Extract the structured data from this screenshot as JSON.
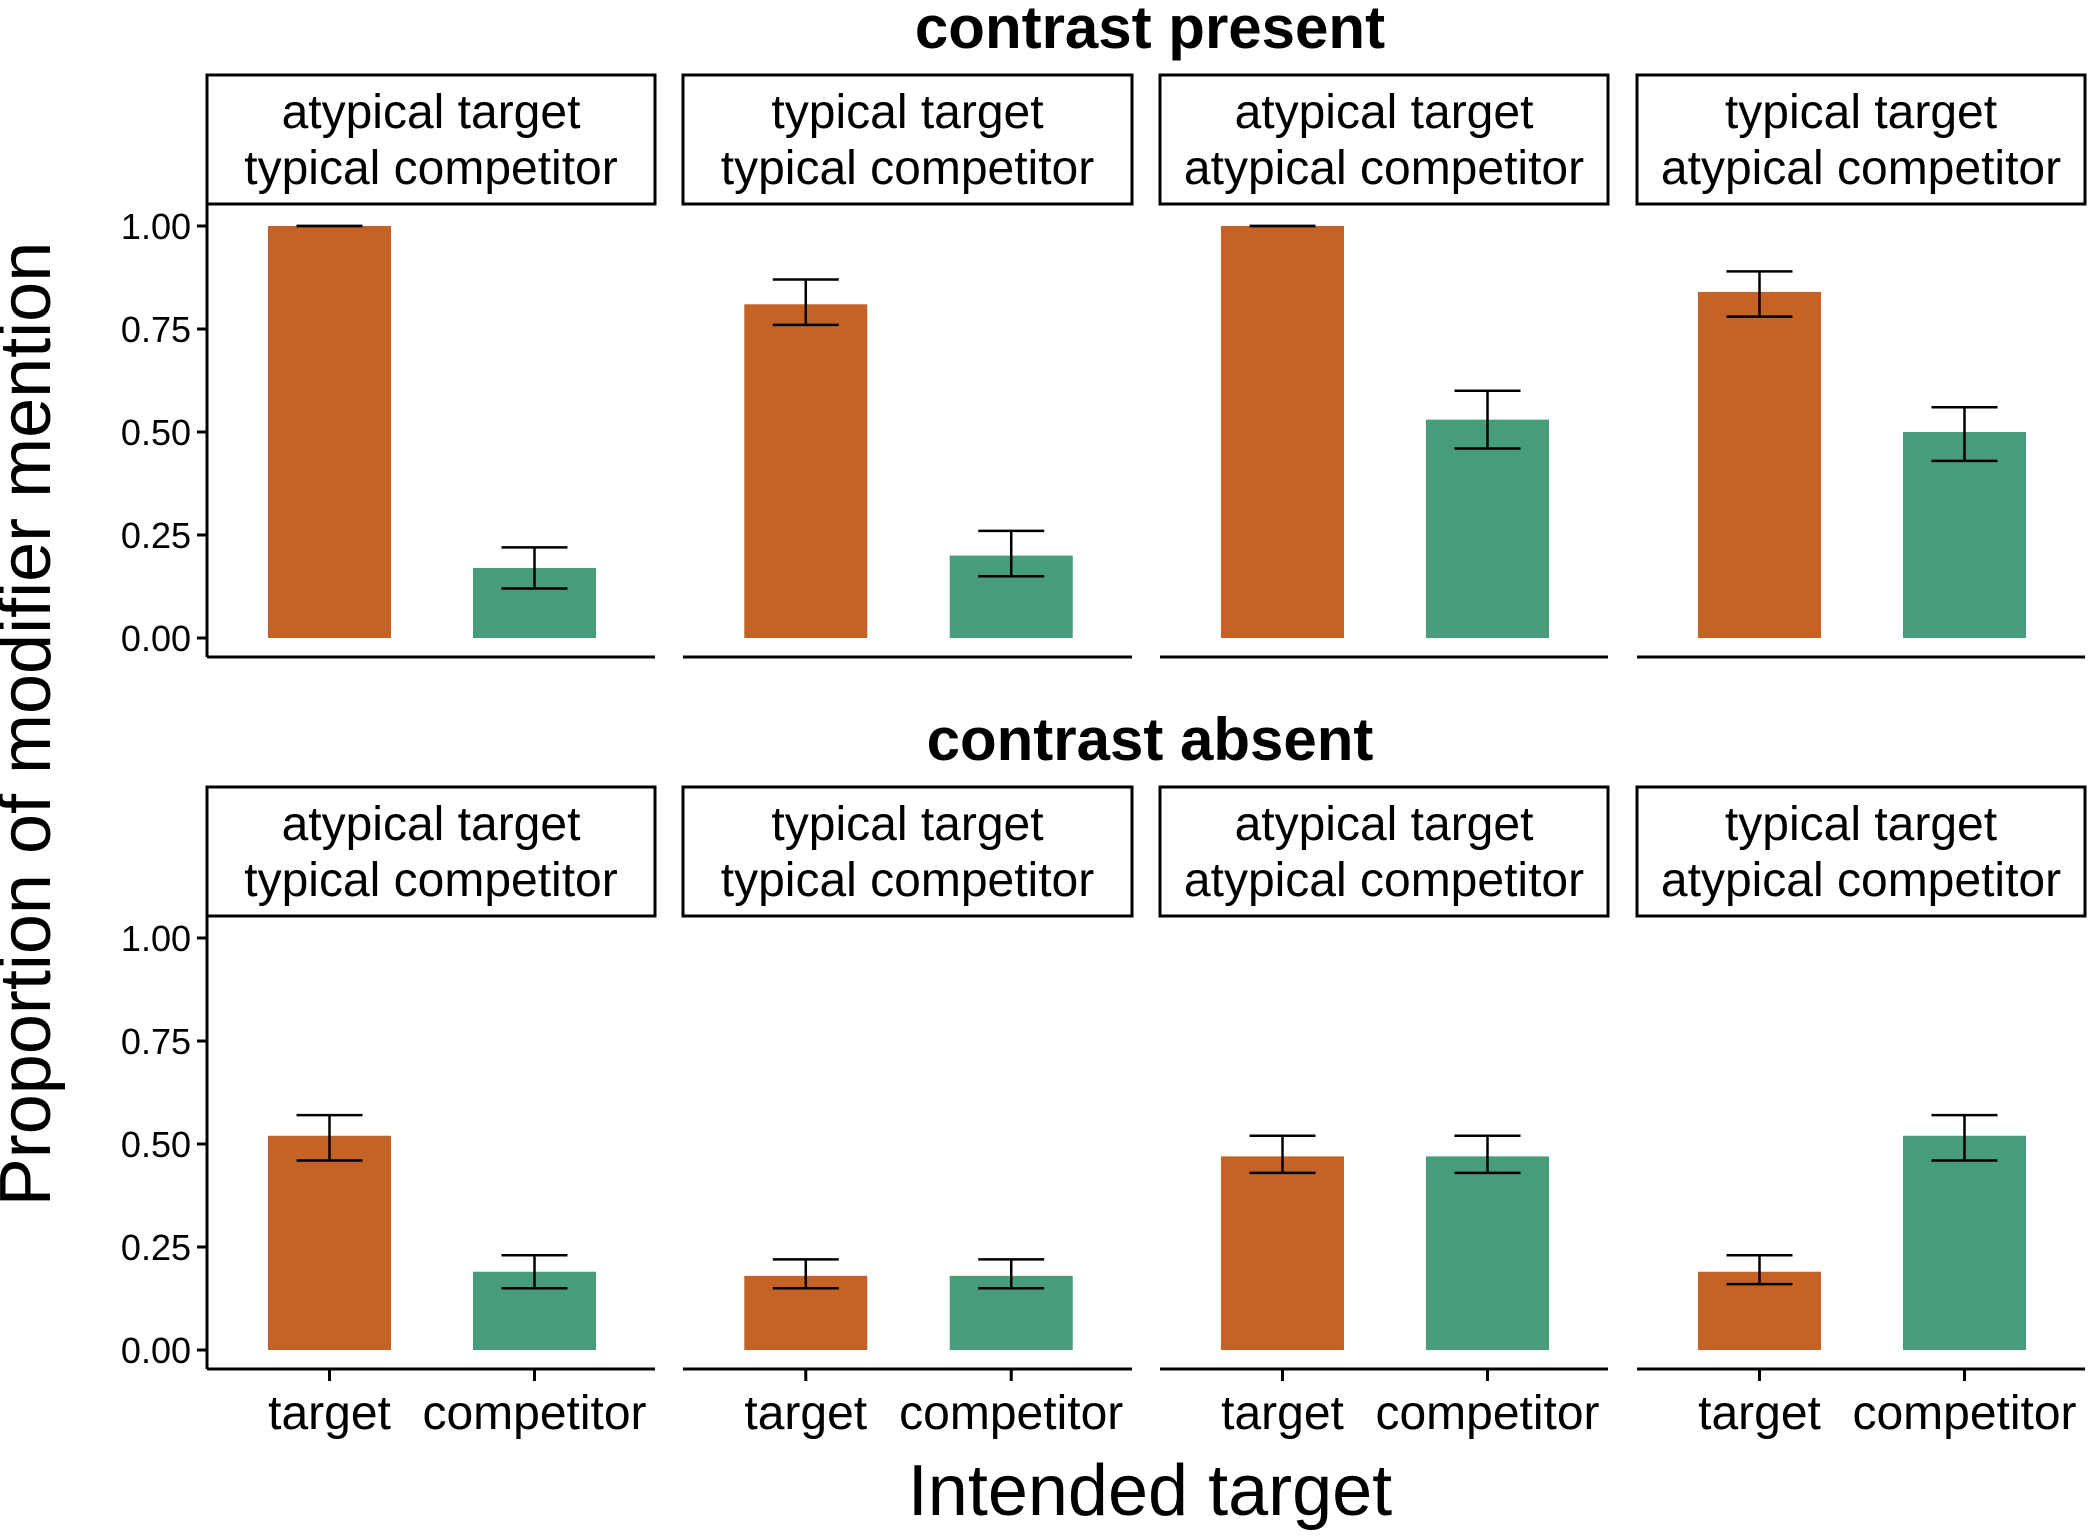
{
  "chart_data": {
    "type": "bar",
    "xlabel": "Intended target",
    "ylabel": "Proportion of modifier mention",
    "categories": [
      "target",
      "competitor"
    ],
    "ylim": [
      0,
      1.05
    ],
    "yticks": [
      "0.00",
      "0.25",
      "0.50",
      "0.75",
      "1.00"
    ],
    "colors": {
      "target": "#C46325",
      "competitor": "#479C79"
    },
    "grid": false,
    "legend": "none",
    "rows": [
      {
        "title": "contrast present",
        "panels": [
          {
            "label": [
              "atypical target",
              "typical competitor"
            ],
            "values": [
              1.0,
              0.17
            ],
            "err_low": [
              1.0,
              0.12
            ],
            "err_high": [
              1.0,
              0.22
            ]
          },
          {
            "label": [
              "typical target",
              "typical competitor"
            ],
            "values": [
              0.81,
              0.2
            ],
            "err_low": [
              0.76,
              0.15
            ],
            "err_high": [
              0.87,
              0.26
            ]
          },
          {
            "label": [
              "atypical target",
              "atypical competitor"
            ],
            "values": [
              1.0,
              0.53
            ],
            "err_low": [
              1.0,
              0.46
            ],
            "err_high": [
              1.0,
              0.6
            ]
          },
          {
            "label": [
              "typical target",
              "atypical competitor"
            ],
            "values": [
              0.84,
              0.5
            ],
            "err_low": [
              0.78,
              0.43
            ],
            "err_high": [
              0.89,
              0.56
            ]
          }
        ]
      },
      {
        "title": "contrast absent",
        "panels": [
          {
            "label": [
              "atypical target",
              "typical competitor"
            ],
            "values": [
              0.52,
              0.19
            ],
            "err_low": [
              0.46,
              0.15
            ],
            "err_high": [
              0.57,
              0.23
            ]
          },
          {
            "label": [
              "typical target",
              "typical competitor"
            ],
            "values": [
              0.18,
              0.18
            ],
            "err_low": [
              0.15,
              0.15
            ],
            "err_high": [
              0.22,
              0.22
            ]
          },
          {
            "label": [
              "atypical target",
              "atypical competitor"
            ],
            "values": [
              0.47,
              0.47
            ],
            "err_low": [
              0.43,
              0.43
            ],
            "err_high": [
              0.52,
              0.52
            ]
          },
          {
            "label": [
              "typical target",
              "atypical competitor"
            ],
            "values": [
              0.19,
              0.52
            ],
            "err_low": [
              0.16,
              0.46
            ],
            "err_high": [
              0.23,
              0.57
            ]
          }
        ]
      }
    ]
  }
}
